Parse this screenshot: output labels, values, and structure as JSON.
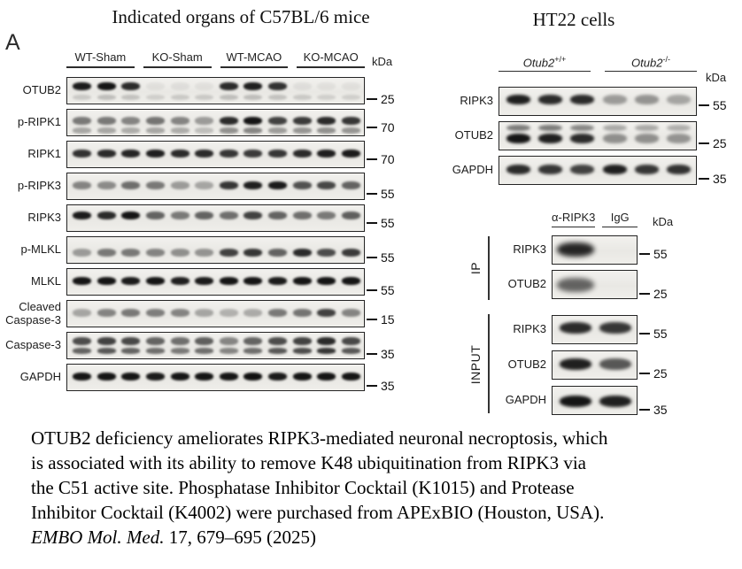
{
  "panel_label": "A",
  "colors": {
    "band": "#0a0a0a",
    "box_border": "#242424",
    "underline": "#2c2c2c"
  },
  "left_panel": {
    "title": "Indicated organs of C57BL/6 mice",
    "kda_label": "kDa",
    "groups": [
      "WT-Sham",
      "KO-Sham",
      "WT-MCAO",
      "KO-MCAO"
    ],
    "rows": [
      {
        "label": "OTUB2",
        "marker": "25",
        "band_y": 0.3,
        "lanes": [
          0.92,
          0.95,
          0.85,
          0.05,
          0.06,
          0.05,
          0.85,
          0.9,
          0.82,
          0.06,
          0.05,
          0.05
        ],
        "sub": {
          "y": 0.72,
          "lanes": [
            0.15,
            0.2,
            0.18,
            0.12,
            0.15,
            0.15,
            0.2,
            0.2,
            0.18,
            0.15,
            0.12,
            0.12
          ]
        }
      },
      {
        "label": "p-RIPK1",
        "marker": "70",
        "band_y": 0.4,
        "lanes": [
          0.5,
          0.5,
          0.45,
          0.52,
          0.45,
          0.35,
          0.85,
          0.95,
          0.75,
          0.78,
          0.85,
          0.8
        ],
        "sub": {
          "y": 0.76,
          "lanes": [
            0.3,
            0.3,
            0.28,
            0.3,
            0.28,
            0.2,
            0.4,
            0.45,
            0.35,
            0.38,
            0.4,
            0.38
          ]
        }
      },
      {
        "label": "RIPK1",
        "marker": "70",
        "band_y": 0.45,
        "lanes": [
          0.82,
          0.85,
          0.88,
          0.9,
          0.85,
          0.85,
          0.8,
          0.78,
          0.8,
          0.85,
          0.9,
          0.92
        ]
      },
      {
        "label": "p-RIPK3",
        "marker": "55",
        "band_y": 0.42,
        "lanes": [
          0.45,
          0.42,
          0.55,
          0.5,
          0.35,
          0.3,
          0.8,
          0.9,
          0.92,
          0.68,
          0.72,
          0.6
        ]
      },
      {
        "label": "RIPK3",
        "marker": "55",
        "band_y": 0.38,
        "lanes": [
          0.92,
          0.85,
          0.95,
          0.6,
          0.5,
          0.6,
          0.55,
          0.75,
          0.6,
          0.55,
          0.5,
          0.62
        ]
      },
      {
        "label": "p-MLKL",
        "marker": "55",
        "band_y": 0.58,
        "lanes": [
          0.35,
          0.5,
          0.5,
          0.45,
          0.4,
          0.38,
          0.75,
          0.8,
          0.6,
          0.85,
          0.7,
          0.78
        ]
      },
      {
        "label": "MLKL",
        "marker": "55",
        "band_y": 0.45,
        "lanes": [
          0.95,
          0.95,
          0.92,
          0.95,
          0.9,
          0.92,
          0.95,
          0.95,
          0.92,
          0.95,
          0.95,
          0.95
        ]
      },
      {
        "label": "Cleaved\nCaspase-3",
        "marker": "15",
        "band_y": 0.42,
        "lanes": [
          0.3,
          0.45,
          0.5,
          0.48,
          0.45,
          0.3,
          0.25,
          0.28,
          0.5,
          0.52,
          0.75,
          0.45
        ]
      },
      {
        "label": "Caspase-3",
        "marker": "35",
        "band_y": 0.3,
        "lanes": [
          0.7,
          0.75,
          0.72,
          0.6,
          0.55,
          0.62,
          0.45,
          0.6,
          0.7,
          0.75,
          0.85,
          0.72
        ],
        "sub": {
          "y": 0.66,
          "lanes": [
            0.6,
            0.65,
            0.6,
            0.55,
            0.5,
            0.55,
            0.45,
            0.55,
            0.65,
            0.7,
            0.8,
            0.65
          ]
        }
      },
      {
        "label": "GAPDH",
        "marker": "35",
        "band_y": 0.45,
        "lanes": [
          0.95,
          0.95,
          0.95,
          0.92,
          0.95,
          0.95,
          0.95,
          0.97,
          0.92,
          0.95,
          0.95,
          0.95
        ]
      }
    ]
  },
  "right_panel": {
    "title": "HT22 cells",
    "kda_label": "kDa",
    "groups": [
      {
        "name": "Otub2",
        "sup": "+/+"
      },
      {
        "name": "Otub2",
        "sup": "-/-"
      }
    ],
    "rows": [
      {
        "label": "RIPK3",
        "marker": "55",
        "band_y": 0.42,
        "lanes": [
          0.9,
          0.85,
          0.85,
          0.35,
          0.38,
          0.3
        ]
      },
      {
        "label": "OTUB2",
        "marker": "25",
        "band_y": 0.56,
        "lanes": [
          0.95,
          0.9,
          0.85,
          0.4,
          0.4,
          0.38
        ],
        "sub": {
          "y": 0.2,
          "lanes": [
            0.5,
            0.5,
            0.45,
            0.3,
            0.3,
            0.28
          ]
        }
      },
      {
        "label": "GAPDH",
        "marker": "35",
        "band_y": 0.45,
        "lanes": [
          0.85,
          0.8,
          0.75,
          0.9,
          0.8,
          0.82
        ]
      }
    ]
  },
  "ip_panel": {
    "kda_label": "kDa",
    "columns": [
      "α-RIPK3",
      "IgG"
    ],
    "ip_label": "IP",
    "input_label": "INPUT",
    "ip_rows": [
      {
        "label": "RIPK3",
        "marker": "55",
        "band_y": 0.45,
        "lanes": [
          0.88,
          0.03
        ]
      },
      {
        "label": "OTUB2",
        "marker": "25",
        "band_y": 0.48,
        "lanes": [
          0.6,
          0.03
        ]
      }
    ],
    "input_rows": [
      {
        "label": "RIPK3",
        "marker": "55",
        "band_y": 0.42,
        "lanes": [
          0.85,
          0.8
        ]
      },
      {
        "label": "OTUB2",
        "marker": "25",
        "band_y": 0.45,
        "lanes": [
          0.9,
          0.65
        ]
      },
      {
        "label": "GAPDH",
        "marker": "35",
        "band_y": 0.5,
        "lanes": [
          0.95,
          0.9
        ]
      }
    ]
  },
  "caption": {
    "lines": [
      "OTUB2 deficiency ameliorates RIPK3-mediated neuronal necroptosis, which",
      "is associated with its ability to remove K48 ubiquitination from RIPK3 via",
      "the C51 active site. Phosphatase Inhibitor Cocktail (K1015) and Protease",
      "Inhibitor Cocktail (K4002) were purchased from APExBIO (Houston, USA)."
    ],
    "citation_italic": "EMBO Mol. Med.",
    "citation_rest": " 17, 679–695 (2025)"
  }
}
